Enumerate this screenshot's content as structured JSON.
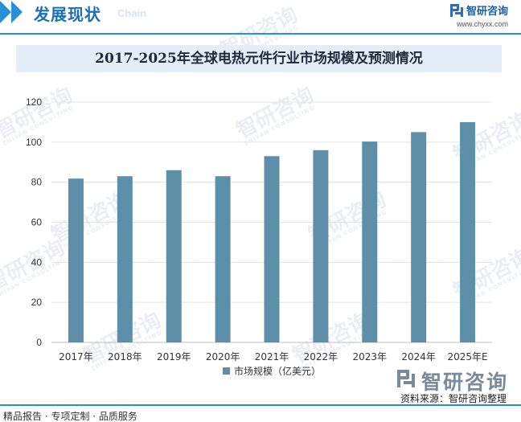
{
  "header": {
    "title": "发展现状",
    "title_en": "Chain",
    "logo_name": "智研咨询",
    "logo_url": "www.chyxx.com"
  },
  "watermark": {
    "name": "智研咨询",
    "sub": "ZHIYAN CONSULTING"
  },
  "chart_data": {
    "type": "bar",
    "title": "2017-2025年全球电热元件行业市场规模及预测情况",
    "categories": [
      "2017年",
      "2018年",
      "2019年",
      "2020年",
      "2021年",
      "2022年",
      "2023年",
      "2024年",
      "2025年E"
    ],
    "series": [
      {
        "name": "市场规模（亿美元）",
        "values": [
          81.8,
          83,
          86,
          83,
          93,
          96,
          100.3,
          105,
          110
        ],
        "color": "#5d8fa8"
      }
    ],
    "ylim": [
      0,
      120
    ],
    "yticks": [
      0,
      20,
      40,
      60,
      80,
      100,
      120
    ],
    "grid": true,
    "legend": "bottom-center"
  },
  "footer": {
    "left": "精品报告 · 专项定制 · 品质服务",
    "source": "资料来源：智研咨询整理",
    "logo_name": "智研咨询"
  }
}
